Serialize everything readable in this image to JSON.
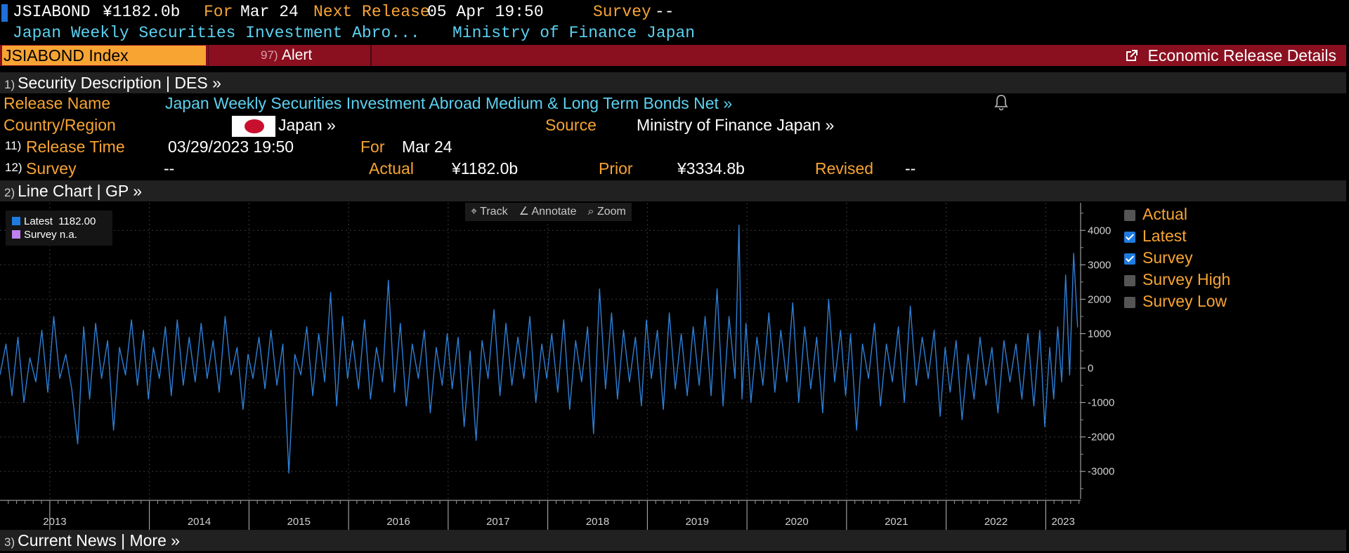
{
  "header": {
    "ticker": "JSIABOND",
    "value": "¥1182.0b",
    "for_label": "For",
    "for_value": "Mar 24",
    "next_release_label": "Next Release",
    "next_release_value": "05 Apr 19:50",
    "survey_label": "Survey",
    "survey_value": "--",
    "name_short": "Japan Weekly Securities Investment Abro...",
    "source_short": "Ministry of Finance Japan"
  },
  "toolbar": {
    "ticker_tab": "JSIABOND Index",
    "alert_num": "97)",
    "alert_label": "Alert",
    "erd_label": "Economic Release Details"
  },
  "des": {
    "num": "1)",
    "title": "Security Description  | DES  »",
    "release_name_label": "Release Name",
    "release_name_value": "Japan Weekly Securities Investment Abroad Medium & Long Term Bonds Net »",
    "country_label": "Country/Region",
    "country_value": "Japan »",
    "source_label": "Source",
    "source_value": "Ministry of Finance Japan »",
    "release_time_num": "11)",
    "release_time_label": "Release Time",
    "release_time_value": "03/29/2023 19:50",
    "for_label": "For",
    "for_value": "Mar 24",
    "survey_num": "12)",
    "survey_label": "Survey",
    "survey_value": "--",
    "actual_label": "Actual",
    "actual_value": "¥1182.0b",
    "prior_label": "Prior",
    "prior_value": "¥3334.8b",
    "revised_label": "Revised",
    "revised_value": "--"
  },
  "chart_section": {
    "num": "2)",
    "title": "Line Chart | GP »"
  },
  "chart_tools": {
    "track": "Track",
    "annotate": "Annotate",
    "zoom": "Zoom"
  },
  "chart_legend": {
    "latest_label": "Latest",
    "latest_value": "1182.00",
    "survey_label": "Survey",
    "survey_value": "n.a."
  },
  "right_legend": [
    {
      "label": "Actual",
      "checked": false
    },
    {
      "label": "Latest",
      "checked": true
    },
    {
      "label": "Survey",
      "checked": true
    },
    {
      "label": "Survey High",
      "checked": false
    },
    {
      "label": "Survey Low",
      "checked": false
    }
  ],
  "news_section": {
    "num": "3)",
    "title": "Current News | More »"
  },
  "colors": {
    "orange": "#f7a433",
    "cyan": "#5bd1f0",
    "line": "#2e7fd6",
    "red_bar": "#8a1020"
  },
  "chart_data": {
    "type": "line",
    "ylim": [
      -3800,
      4800
    ],
    "y_ticks": [
      4000,
      3000,
      2000,
      1000,
      0,
      -1000,
      -2000,
      -3000
    ],
    "y_tick_labels": [
      "4000",
      "3000",
      "2000",
      "1000",
      "0",
      "-1000",
      "-2000",
      "-3000"
    ],
    "x_ticks": [
      "2013",
      "2014",
      "2015",
      "2016",
      "2017",
      "2018",
      "2019",
      "2020",
      "2021",
      "2022",
      "2023"
    ],
    "x_range": [
      2012.5,
      2023.35
    ],
    "series": [
      {
        "name": "Latest",
        "color": "#2e7fd6",
        "points": [
          [
            2012.5,
            -200
          ],
          [
            2012.56,
            700
          ],
          [
            2012.62,
            -800
          ],
          [
            2012.68,
            900
          ],
          [
            2012.74,
            -1000
          ],
          [
            2012.8,
            300
          ],
          [
            2012.86,
            -400
          ],
          [
            2012.92,
            1100
          ],
          [
            2012.98,
            -700
          ],
          [
            2013.04,
            1500
          ],
          [
            2013.1,
            -300
          ],
          [
            2013.16,
            400
          ],
          [
            2013.22,
            -600
          ],
          [
            2013.28,
            -2200
          ],
          [
            2013.34,
            1200
          ],
          [
            2013.4,
            -900
          ],
          [
            2013.46,
            1300
          ],
          [
            2013.52,
            -300
          ],
          [
            2013.58,
            800
          ],
          [
            2013.64,
            -1800
          ],
          [
            2013.7,
            600
          ],
          [
            2013.76,
            -200
          ],
          [
            2013.82,
            1400
          ],
          [
            2013.88,
            -500
          ],
          [
            2013.94,
            1100
          ],
          [
            2013.99,
            -900
          ],
          [
            2014.04,
            600
          ],
          [
            2014.1,
            -300
          ],
          [
            2014.16,
            1200
          ],
          [
            2014.22,
            -800
          ],
          [
            2014.28,
            1400
          ],
          [
            2014.34,
            -500
          ],
          [
            2014.4,
            900
          ],
          [
            2014.46,
            -400
          ],
          [
            2014.52,
            1300
          ],
          [
            2014.58,
            -300
          ],
          [
            2014.64,
            800
          ],
          [
            2014.7,
            -700
          ],
          [
            2014.76,
            1500
          ],
          [
            2014.82,
            -200
          ],
          [
            2014.88,
            600
          ],
          [
            2014.94,
            -1200
          ],
          [
            2014.99,
            400
          ],
          [
            2015.04,
            -300
          ],
          [
            2015.1,
            900
          ],
          [
            2015.16,
            -600
          ],
          [
            2015.22,
            1100
          ],
          [
            2015.28,
            -500
          ],
          [
            2015.34,
            700
          ],
          [
            2015.4,
            -3050
          ],
          [
            2015.46,
            400
          ],
          [
            2015.52,
            -200
          ],
          [
            2015.58,
            1200
          ],
          [
            2015.64,
            -800
          ],
          [
            2015.7,
            1000
          ],
          [
            2015.76,
            -400
          ],
          [
            2015.82,
            2200
          ],
          [
            2015.88,
            -1100
          ],
          [
            2015.94,
            1500
          ],
          [
            2015.99,
            -300
          ],
          [
            2016.04,
            800
          ],
          [
            2016.1,
            -600
          ],
          [
            2016.16,
            1400
          ],
          [
            2016.22,
            -900
          ],
          [
            2016.28,
            600
          ],
          [
            2016.34,
            -400
          ],
          [
            2016.4,
            2550
          ],
          [
            2016.46,
            -700
          ],
          [
            2016.52,
            1300
          ],
          [
            2016.58,
            -1100
          ],
          [
            2016.64,
            700
          ],
          [
            2016.7,
            -300
          ],
          [
            2016.76,
            1100
          ],
          [
            2016.82,
            -1300
          ],
          [
            2016.88,
            600
          ],
          [
            2016.94,
            -500
          ],
          [
            2016.99,
            1000
          ],
          [
            2017.04,
            -600
          ],
          [
            2017.1,
            900
          ],
          [
            2017.16,
            -1700
          ],
          [
            2017.22,
            500
          ],
          [
            2017.28,
            -2100
          ],
          [
            2017.34,
            800
          ],
          [
            2017.4,
            -300
          ],
          [
            2017.46,
            1700
          ],
          [
            2017.52,
            -800
          ],
          [
            2017.58,
            1300
          ],
          [
            2017.64,
            -500
          ],
          [
            2017.7,
            900
          ],
          [
            2017.76,
            -300
          ],
          [
            2017.82,
            1500
          ],
          [
            2017.88,
            -1000
          ],
          [
            2017.94,
            700
          ],
          [
            2017.99,
            -300
          ],
          [
            2018.04,
            1000
          ],
          [
            2018.1,
            -700
          ],
          [
            2018.16,
            1400
          ],
          [
            2018.22,
            -1200
          ],
          [
            2018.28,
            800
          ],
          [
            2018.34,
            -400
          ],
          [
            2018.4,
            1200
          ],
          [
            2018.46,
            -1900
          ],
          [
            2018.52,
            2300
          ],
          [
            2018.58,
            -600
          ],
          [
            2018.64,
            1600
          ],
          [
            2018.7,
            -900
          ],
          [
            2018.76,
            1100
          ],
          [
            2018.82,
            -400
          ],
          [
            2018.88,
            900
          ],
          [
            2018.94,
            -1100
          ],
          [
            2018.99,
            1400
          ],
          [
            2019.04,
            -300
          ],
          [
            2019.1,
            1100
          ],
          [
            2019.16,
            -1200
          ],
          [
            2019.22,
            1600
          ],
          [
            2019.28,
            -600
          ],
          [
            2019.34,
            1000
          ],
          [
            2019.4,
            -800
          ],
          [
            2019.46,
            1200
          ],
          [
            2019.52,
            -500
          ],
          [
            2019.58,
            1500
          ],
          [
            2019.64,
            -800
          ],
          [
            2019.7,
            2300
          ],
          [
            2019.76,
            -1100
          ],
          [
            2019.82,
            1500
          ],
          [
            2019.88,
            -300
          ],
          [
            2019.92,
            4150
          ],
          [
            2019.95,
            -900
          ],
          [
            2019.99,
            1300
          ],
          [
            2020.04,
            -1000
          ],
          [
            2020.1,
            900
          ],
          [
            2020.16,
            -500
          ],
          [
            2020.22,
            1600
          ],
          [
            2020.28,
            -700
          ],
          [
            2020.34,
            1100
          ],
          [
            2020.4,
            -400
          ],
          [
            2020.46,
            1900
          ],
          [
            2020.52,
            -1000
          ],
          [
            2020.58,
            1200
          ],
          [
            2020.64,
            -600
          ],
          [
            2020.7,
            900
          ],
          [
            2020.76,
            -1300
          ],
          [
            2020.82,
            2000
          ],
          [
            2020.88,
            -400
          ],
          [
            2020.94,
            1100
          ],
          [
            2020.99,
            -800
          ],
          [
            2021.04,
            1000
          ],
          [
            2021.1,
            -1800
          ],
          [
            2021.16,
            700
          ],
          [
            2021.22,
            -300
          ],
          [
            2021.28,
            1300
          ],
          [
            2021.34,
            -1100
          ],
          [
            2021.4,
            700
          ],
          [
            2021.46,
            -400
          ],
          [
            2021.52,
            1200
          ],
          [
            2021.58,
            -1000
          ],
          [
            2021.64,
            1800
          ],
          [
            2021.7,
            -500
          ],
          [
            2021.76,
            900
          ],
          [
            2021.82,
            -300
          ],
          [
            2021.88,
            1100
          ],
          [
            2021.94,
            -1400
          ],
          [
            2021.99,
            600
          ],
          [
            2022.04,
            -700
          ],
          [
            2022.1,
            800
          ],
          [
            2022.16,
            -1500
          ],
          [
            2022.22,
            400
          ],
          [
            2022.28,
            -900
          ],
          [
            2022.34,
            900
          ],
          [
            2022.4,
            -500
          ],
          [
            2022.46,
            600
          ],
          [
            2022.52,
            -1300
          ],
          [
            2022.58,
            800
          ],
          [
            2022.64,
            -400
          ],
          [
            2022.7,
            700
          ],
          [
            2022.76,
            -900
          ],
          [
            2022.82,
            1000
          ],
          [
            2022.88,
            -1100
          ],
          [
            2022.94,
            1100
          ],
          [
            2022.99,
            -1700
          ],
          [
            2023.04,
            600
          ],
          [
            2023.08,
            -900
          ],
          [
            2023.12,
            1200
          ],
          [
            2023.16,
            -400
          ],
          [
            2023.2,
            2700
          ],
          [
            2023.24,
            -200
          ],
          [
            2023.28,
            3334.8
          ],
          [
            2023.32,
            1182
          ]
        ]
      }
    ]
  }
}
